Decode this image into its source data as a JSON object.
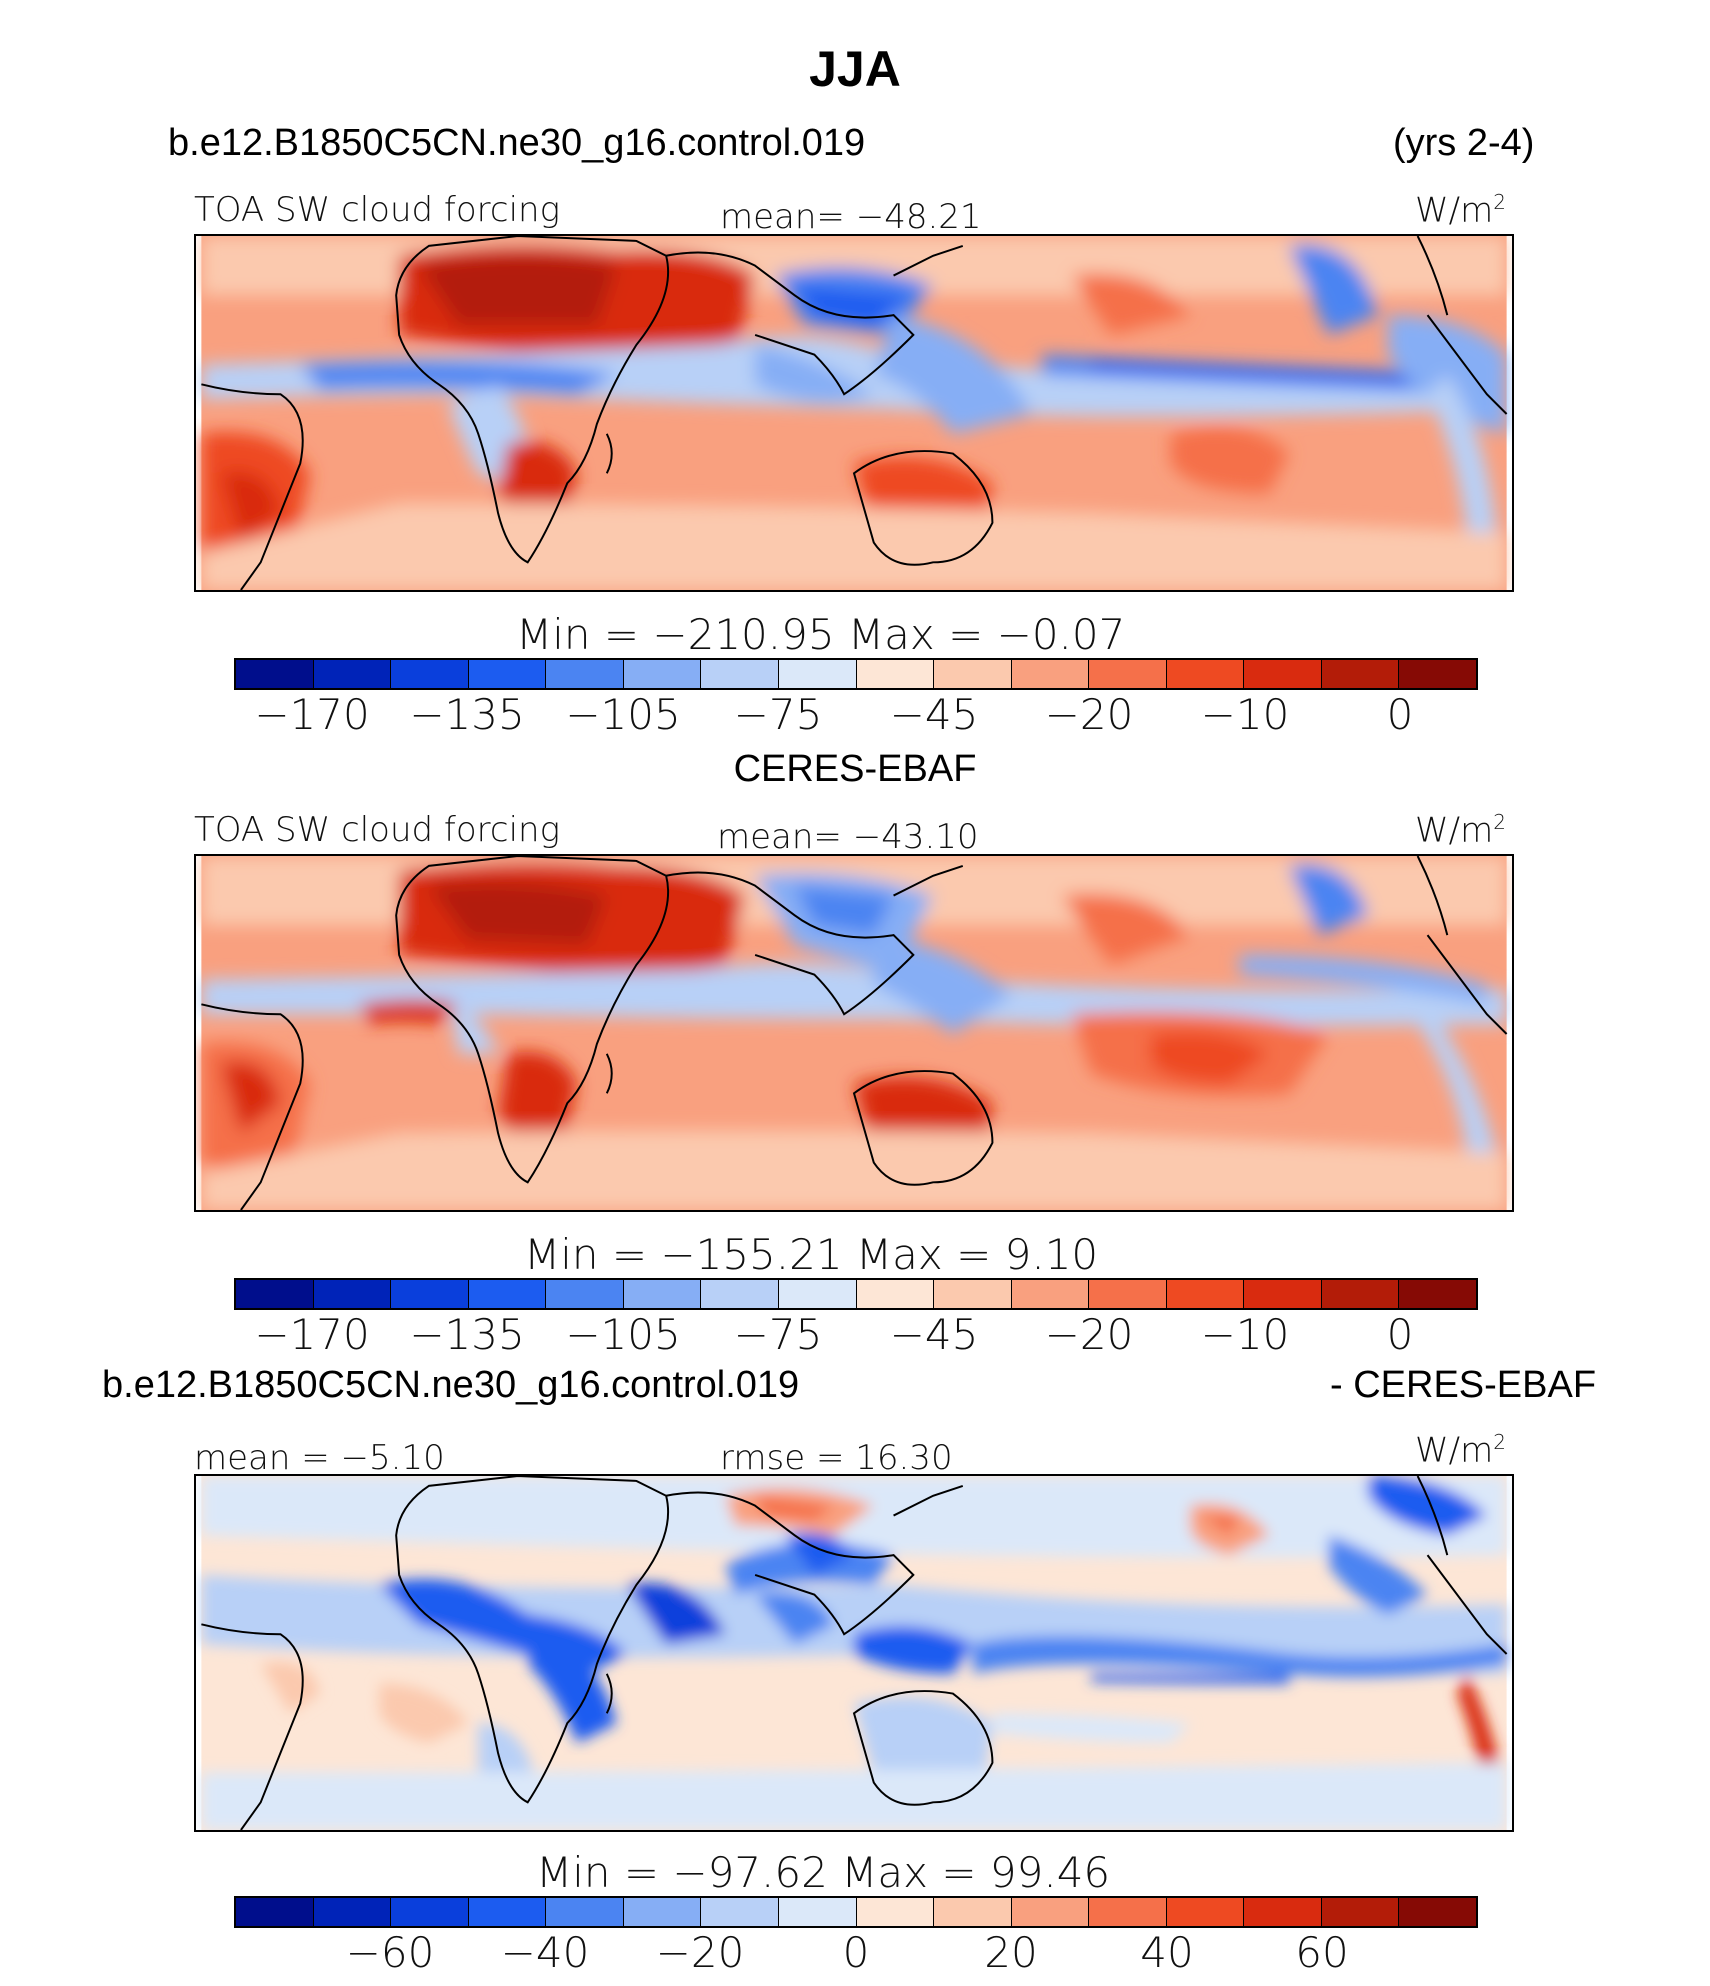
{
  "title": "JJA",
  "panels": [
    {
      "case_label": "b.e12.B1850C5CN.ne30_g16.control.019",
      "right_label": "(yrs 2-4)",
      "variable": "TOA SW cloud forcing",
      "mean": "mean=  −48.21",
      "units": "W/m",
      "units_sup": "2",
      "minmax": "Min  =  −210.95  Max  =   −0.07"
    },
    {
      "case_label": "CERES-EBAF",
      "variable": "TOA SW cloud forcing",
      "mean": "mean=  −43.10",
      "units": "W/m",
      "units_sup": "2",
      "minmax": "Min  =  −155.21  Max  =    9.10"
    },
    {
      "case_label": "b.e12.B1850C5CN.ne30_g16.control.019",
      "right_label": "- CERES-EBAF",
      "mean": "mean =   −5.10",
      "rmse": "rmse =   16.30",
      "units": "W/m",
      "units_sup": "2",
      "minmax": "Min  =  −97.62  Max  =   99.46"
    }
  ],
  "colorbars": {
    "abs_ticks": [
      "−170",
      "−135",
      "−105",
      "−75",
      "−45",
      "−20",
      "−10",
      "0"
    ],
    "diff_ticks": [
      "−60",
      "−40",
      "−20",
      "0",
      "20",
      "40",
      "60"
    ],
    "colors": [
      "#000e8c",
      "#0023b8",
      "#0a3fdc",
      "#1c5cf0",
      "#4b84f2",
      "#86aef5",
      "#b8d0f7",
      "#dbe8f9",
      "#fde6d6",
      "#fbc9ae",
      "#f9a07f",
      "#f5704a",
      "#ee4a22",
      "#d92b0f",
      "#b31c08",
      "#860a05"
    ]
  }
}
